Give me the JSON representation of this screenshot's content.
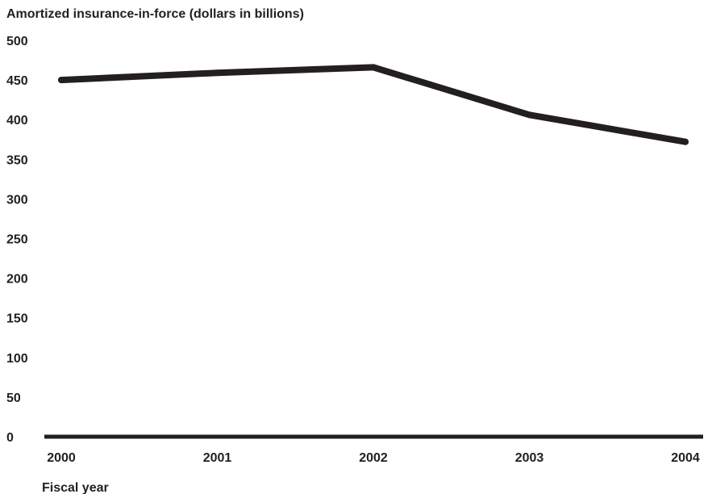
{
  "chart_data": {
    "type": "line",
    "ylabel": "Amortized insurance-in-force (dollars in billions)",
    "xlabel": "Fiscal year",
    "categories": [
      "2000",
      "2001",
      "2002",
      "2003",
      "2004"
    ],
    "series": [
      {
        "values": [
          450,
          459,
          466,
          406,
          372
        ]
      }
    ],
    "y_ticks": [
      "500",
      "450",
      "400",
      "350",
      "300",
      "250",
      "200",
      "150",
      "100",
      "50",
      "0"
    ],
    "ylim": [
      0,
      500
    ],
    "grid": false,
    "legend": "none",
    "colors": {
      "line": "#231f20",
      "axis": "#231f20",
      "text": "#231f20"
    }
  }
}
